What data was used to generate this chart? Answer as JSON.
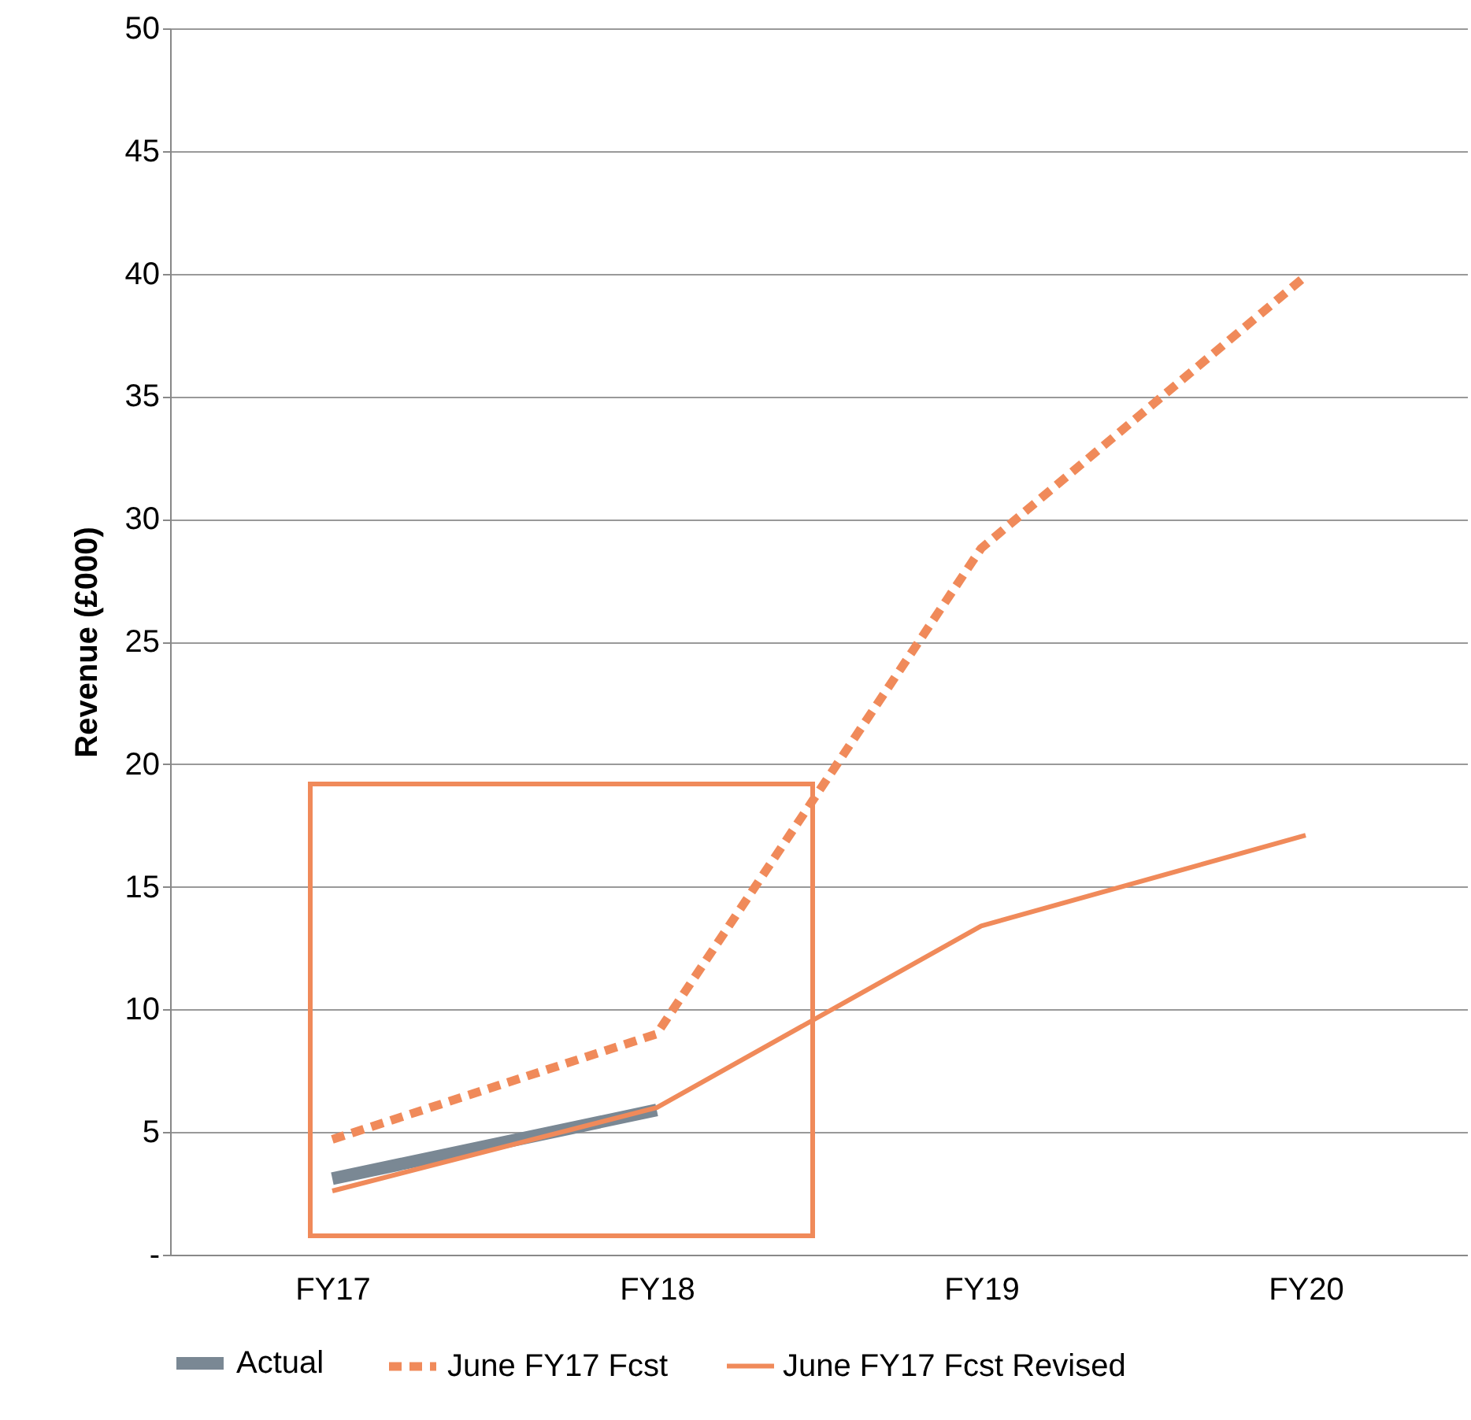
{
  "chart_data": {
    "type": "line",
    "ylabel": "Revenue (£000)",
    "categories": [
      "FY17",
      "FY18",
      "FY19",
      "FY20"
    ],
    "ylim": [
      0,
      50
    ],
    "yticks": [
      {
        "value": 0,
        "label": "-"
      },
      5,
      10,
      15,
      20,
      25,
      30,
      35,
      40,
      45,
      50
    ],
    "grid": "y",
    "legend": "bottom",
    "marker": "none",
    "series": [
      {
        "name": "Actual",
        "color": "#7a8894",
        "values": [
          3.1,
          5.9,
          null,
          null
        ],
        "line_style": "solid"
      },
      {
        "name": "June FY17 Fcst",
        "color": "#f08a5a",
        "values": [
          4.7,
          9.0,
          28.8,
          39.9
        ],
        "line_style": "dashed"
      },
      {
        "name": "June FY17 Fcst Revised",
        "color": "#f08a5a",
        "values": [
          2.6,
          6.0,
          13.4,
          17.1
        ],
        "line_style": "solid"
      }
    ]
  }
}
